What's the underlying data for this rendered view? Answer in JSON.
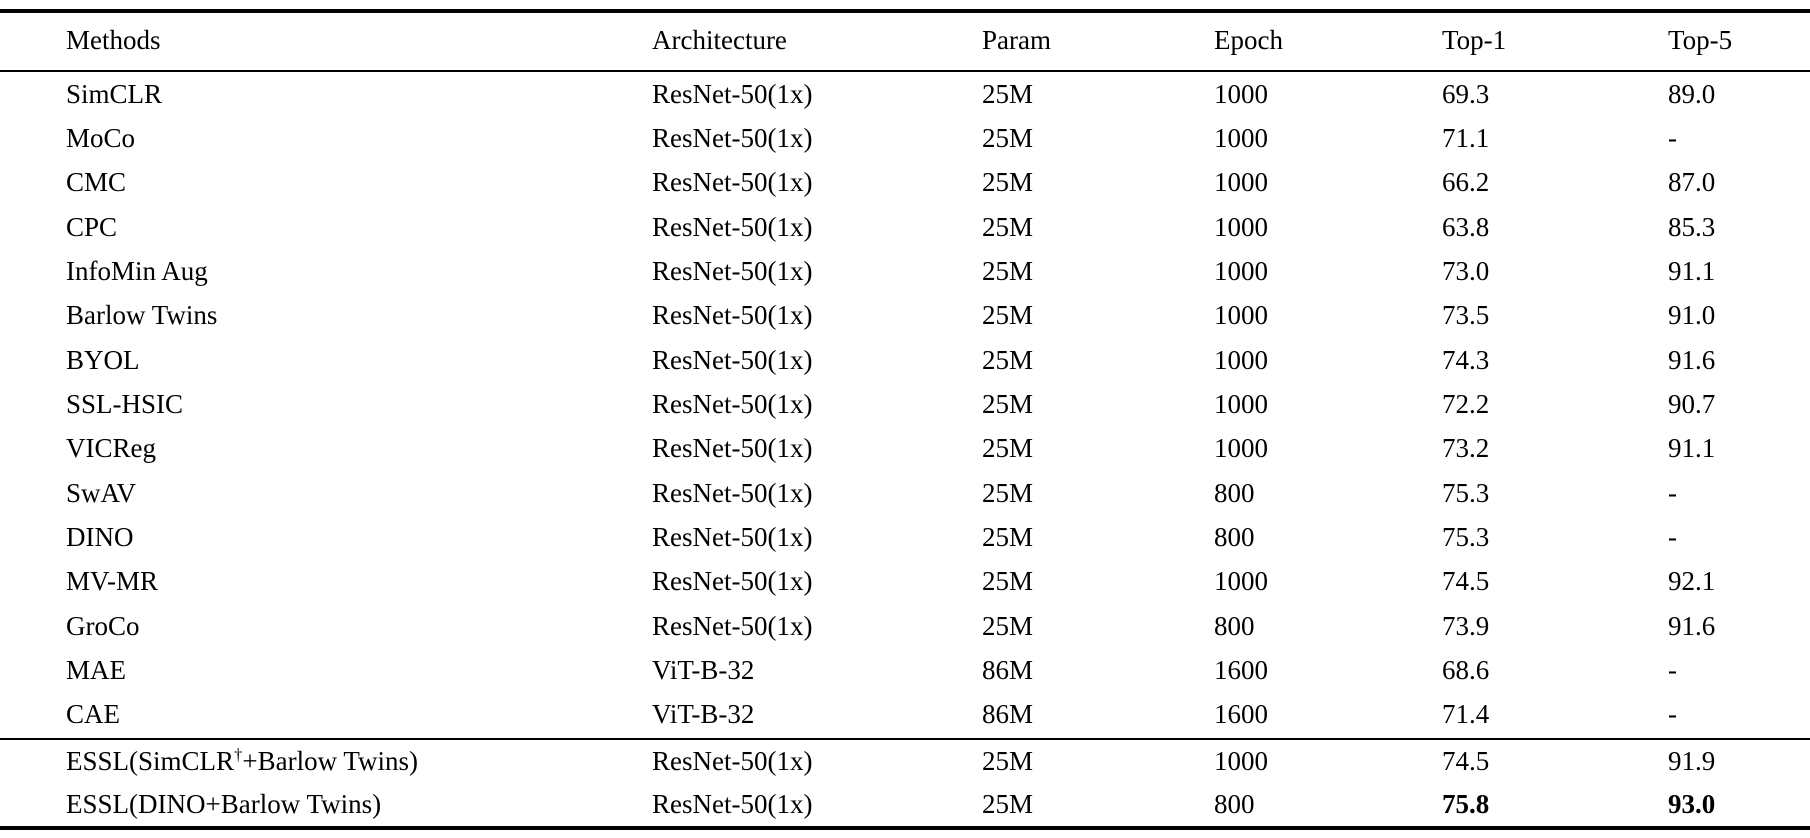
{
  "page": {
    "background_color": "#ffffff",
    "text_color": "#000000",
    "rule_color": "#000000"
  },
  "table": {
    "columns": [
      "Methods",
      "Architecture",
      "Param",
      "Epoch",
      "Top-1",
      "Top-5"
    ],
    "main_rows": [
      {
        "cells": [
          "SimCLR",
          "ResNet-50(1x)",
          "25M",
          "1000",
          "69.3",
          "89.0"
        ]
      },
      {
        "cells": [
          "MoCo",
          "ResNet-50(1x)",
          "25M",
          "1000",
          "71.1",
          "-"
        ]
      },
      {
        "cells": [
          "CMC",
          "ResNet-50(1x)",
          "25M",
          "1000",
          "66.2",
          "87.0"
        ]
      },
      {
        "cells": [
          "CPC",
          "ResNet-50(1x)",
          "25M",
          "1000",
          "63.8",
          "85.3"
        ]
      },
      {
        "cells": [
          "InfoMin Aug",
          "ResNet-50(1x)",
          "25M",
          "1000",
          "73.0",
          "91.1"
        ]
      },
      {
        "cells": [
          "Barlow Twins",
          "ResNet-50(1x)",
          "25M",
          "1000",
          "73.5",
          "91.0"
        ]
      },
      {
        "cells": [
          "BYOL",
          "ResNet-50(1x)",
          "25M",
          "1000",
          "74.3",
          "91.6"
        ]
      },
      {
        "cells": [
          "SSL-HSIC",
          "ResNet-50(1x)",
          "25M",
          "1000",
          "72.2",
          "90.7"
        ]
      },
      {
        "cells": [
          "VICReg",
          "ResNet-50(1x)",
          "25M",
          "1000",
          "73.2",
          "91.1"
        ]
      },
      {
        "cells": [
          "SwAV",
          "ResNet-50(1x)",
          "25M",
          "800",
          "75.3",
          "-"
        ]
      },
      {
        "cells": [
          "DINO",
          "ResNet-50(1x)",
          "25M",
          "800",
          "75.3",
          "-"
        ]
      },
      {
        "cells": [
          "MV-MR",
          "ResNet-50(1x)",
          "25M",
          "1000",
          "74.5",
          "92.1"
        ]
      },
      {
        "cells": [
          "GroCo",
          "ResNet-50(1x)",
          "25M",
          "800",
          "73.9",
          "91.6"
        ]
      },
      {
        "cells": [
          "MAE",
          "ViT-B-32",
          "86M",
          "1600",
          "68.6",
          "-"
        ]
      },
      {
        "cells": [
          "CAE",
          "ViT-B-32",
          "86M",
          "1600",
          "71.4",
          "-"
        ]
      }
    ],
    "essl_rows": [
      {
        "cells": [
          "ESSL(SimCLR†+Barlow Twins)",
          "ResNet-50(1x)",
          "25M",
          "1000",
          "74.5",
          "91.9"
        ]
      },
      {
        "cells": [
          "ESSL(DINO+Barlow Twins)",
          "ResNet-50(1x)",
          "25M",
          "800",
          "75.8",
          "93.0"
        ],
        "bold_cols": [
          4,
          5
        ]
      }
    ]
  }
}
